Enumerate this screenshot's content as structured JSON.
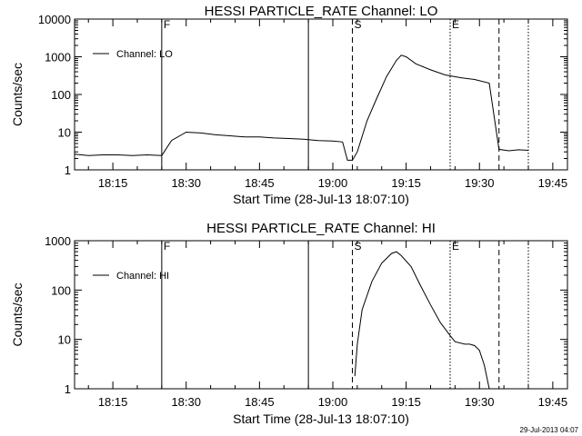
{
  "timestamp": "29-Jul-2013 04:07",
  "chart_data": [
    {
      "type": "line",
      "title": "HESSI PARTICLE_RATE Channel: LO",
      "xlabel": "Start Time (28-Jul-13 18:07:10)",
      "ylabel": "Counts/sec",
      "x_unit": "minutes after 18:07:10",
      "xlim": [
        "18:07:10",
        "19:48:00"
      ],
      "ylim": [
        1,
        10000
      ],
      "yscale": "log",
      "grid": false,
      "legend_position": "top-left",
      "x_ticks": [
        "18:15",
        "18:30",
        "18:45",
        "19:00",
        "19:15",
        "19:30",
        "19:45"
      ],
      "y_ticks": [
        "1",
        "10",
        "100",
        "1000",
        "10000"
      ],
      "markers": [
        {
          "label": "F",
          "time": "18:25:00",
          "style": "solid"
        },
        {
          "label": "",
          "time": "18:55:00",
          "style": "solid"
        },
        {
          "label": "S",
          "time": "19:04:00",
          "style": "dashed"
        },
        {
          "label": "E",
          "time": "19:24:00",
          "style": "dotted"
        },
        {
          "label": "",
          "time": "19:34:00",
          "style": "dashed"
        },
        {
          "label": "",
          "time": "19:40:00",
          "style": "dotted"
        }
      ],
      "series": [
        {
          "name": "Channel: LO",
          "x": [
            "18:07:10",
            "18:10",
            "18:13",
            "18:16",
            "18:19",
            "18:22",
            "18:25",
            "18:27",
            "18:30",
            "18:33",
            "18:36",
            "18:39",
            "18:42",
            "18:45",
            "18:48",
            "18:51",
            "18:54",
            "18:57",
            "19:00",
            "19:02",
            "19:03",
            "19:04",
            "19:05",
            "19:07",
            "19:09",
            "19:11",
            "19:13",
            "19:14",
            "19:15",
            "19:17",
            "19:20",
            "19:23",
            "19:26",
            "19:29",
            "19:32",
            "19:34",
            "19:36",
            "19:38",
            "19:40"
          ],
          "y": [
            2.6,
            2.4,
            2.5,
            2.5,
            2.4,
            2.5,
            2.4,
            6.0,
            10.0,
            9.5,
            8.5,
            8.0,
            7.5,
            7.5,
            7.0,
            6.8,
            6.5,
            6.0,
            5.8,
            5.5,
            1.8,
            1.8,
            3.0,
            20,
            80,
            300,
            800,
            1100,
            1000,
            650,
            450,
            330,
            280,
            250,
            200,
            3.5,
            3.2,
            3.4,
            3.3
          ]
        }
      ]
    },
    {
      "type": "line",
      "title": "HESSI PARTICLE_RATE Channel: HI",
      "xlabel": "Start Time (28-Jul-13 18:07:10)",
      "ylabel": "Counts/sec",
      "x_unit": "minutes after 18:07:10",
      "xlim": [
        "18:07:10",
        "19:48:00"
      ],
      "ylim": [
        1,
        1000
      ],
      "yscale": "log",
      "grid": false,
      "legend_position": "top-left",
      "x_ticks": [
        "18:15",
        "18:30",
        "18:45",
        "19:00",
        "19:15",
        "19:30",
        "19:45"
      ],
      "y_ticks": [
        "1",
        "10",
        "100",
        "1000"
      ],
      "markers": [
        {
          "label": "F",
          "time": "18:25:00",
          "style": "solid"
        },
        {
          "label": "",
          "time": "18:55:00",
          "style": "solid"
        },
        {
          "label": "S",
          "time": "19:04:00",
          "style": "dashed"
        },
        {
          "label": "E",
          "time": "19:24:00",
          "style": "dotted"
        },
        {
          "label": "",
          "time": "19:34:00",
          "style": "dashed"
        },
        {
          "label": "",
          "time": "19:40:00",
          "style": "dotted"
        }
      ],
      "series": [
        {
          "name": "Channel: HI",
          "x": [
            "19:04:30",
            "19:05",
            "19:06",
            "19:08",
            "19:10",
            "19:12",
            "19:13",
            "19:14",
            "19:16",
            "19:18",
            "19:20",
            "19:22",
            "19:24",
            "19:25",
            "19:27",
            "19:28",
            "19:29",
            "19:30",
            "19:31",
            "19:32"
          ],
          "y": [
            1.8,
            8,
            40,
            150,
            350,
            550,
            600,
            500,
            300,
            120,
            50,
            22,
            12,
            9,
            8,
            8,
            7.5,
            6,
            3,
            1
          ]
        }
      ]
    }
  ]
}
